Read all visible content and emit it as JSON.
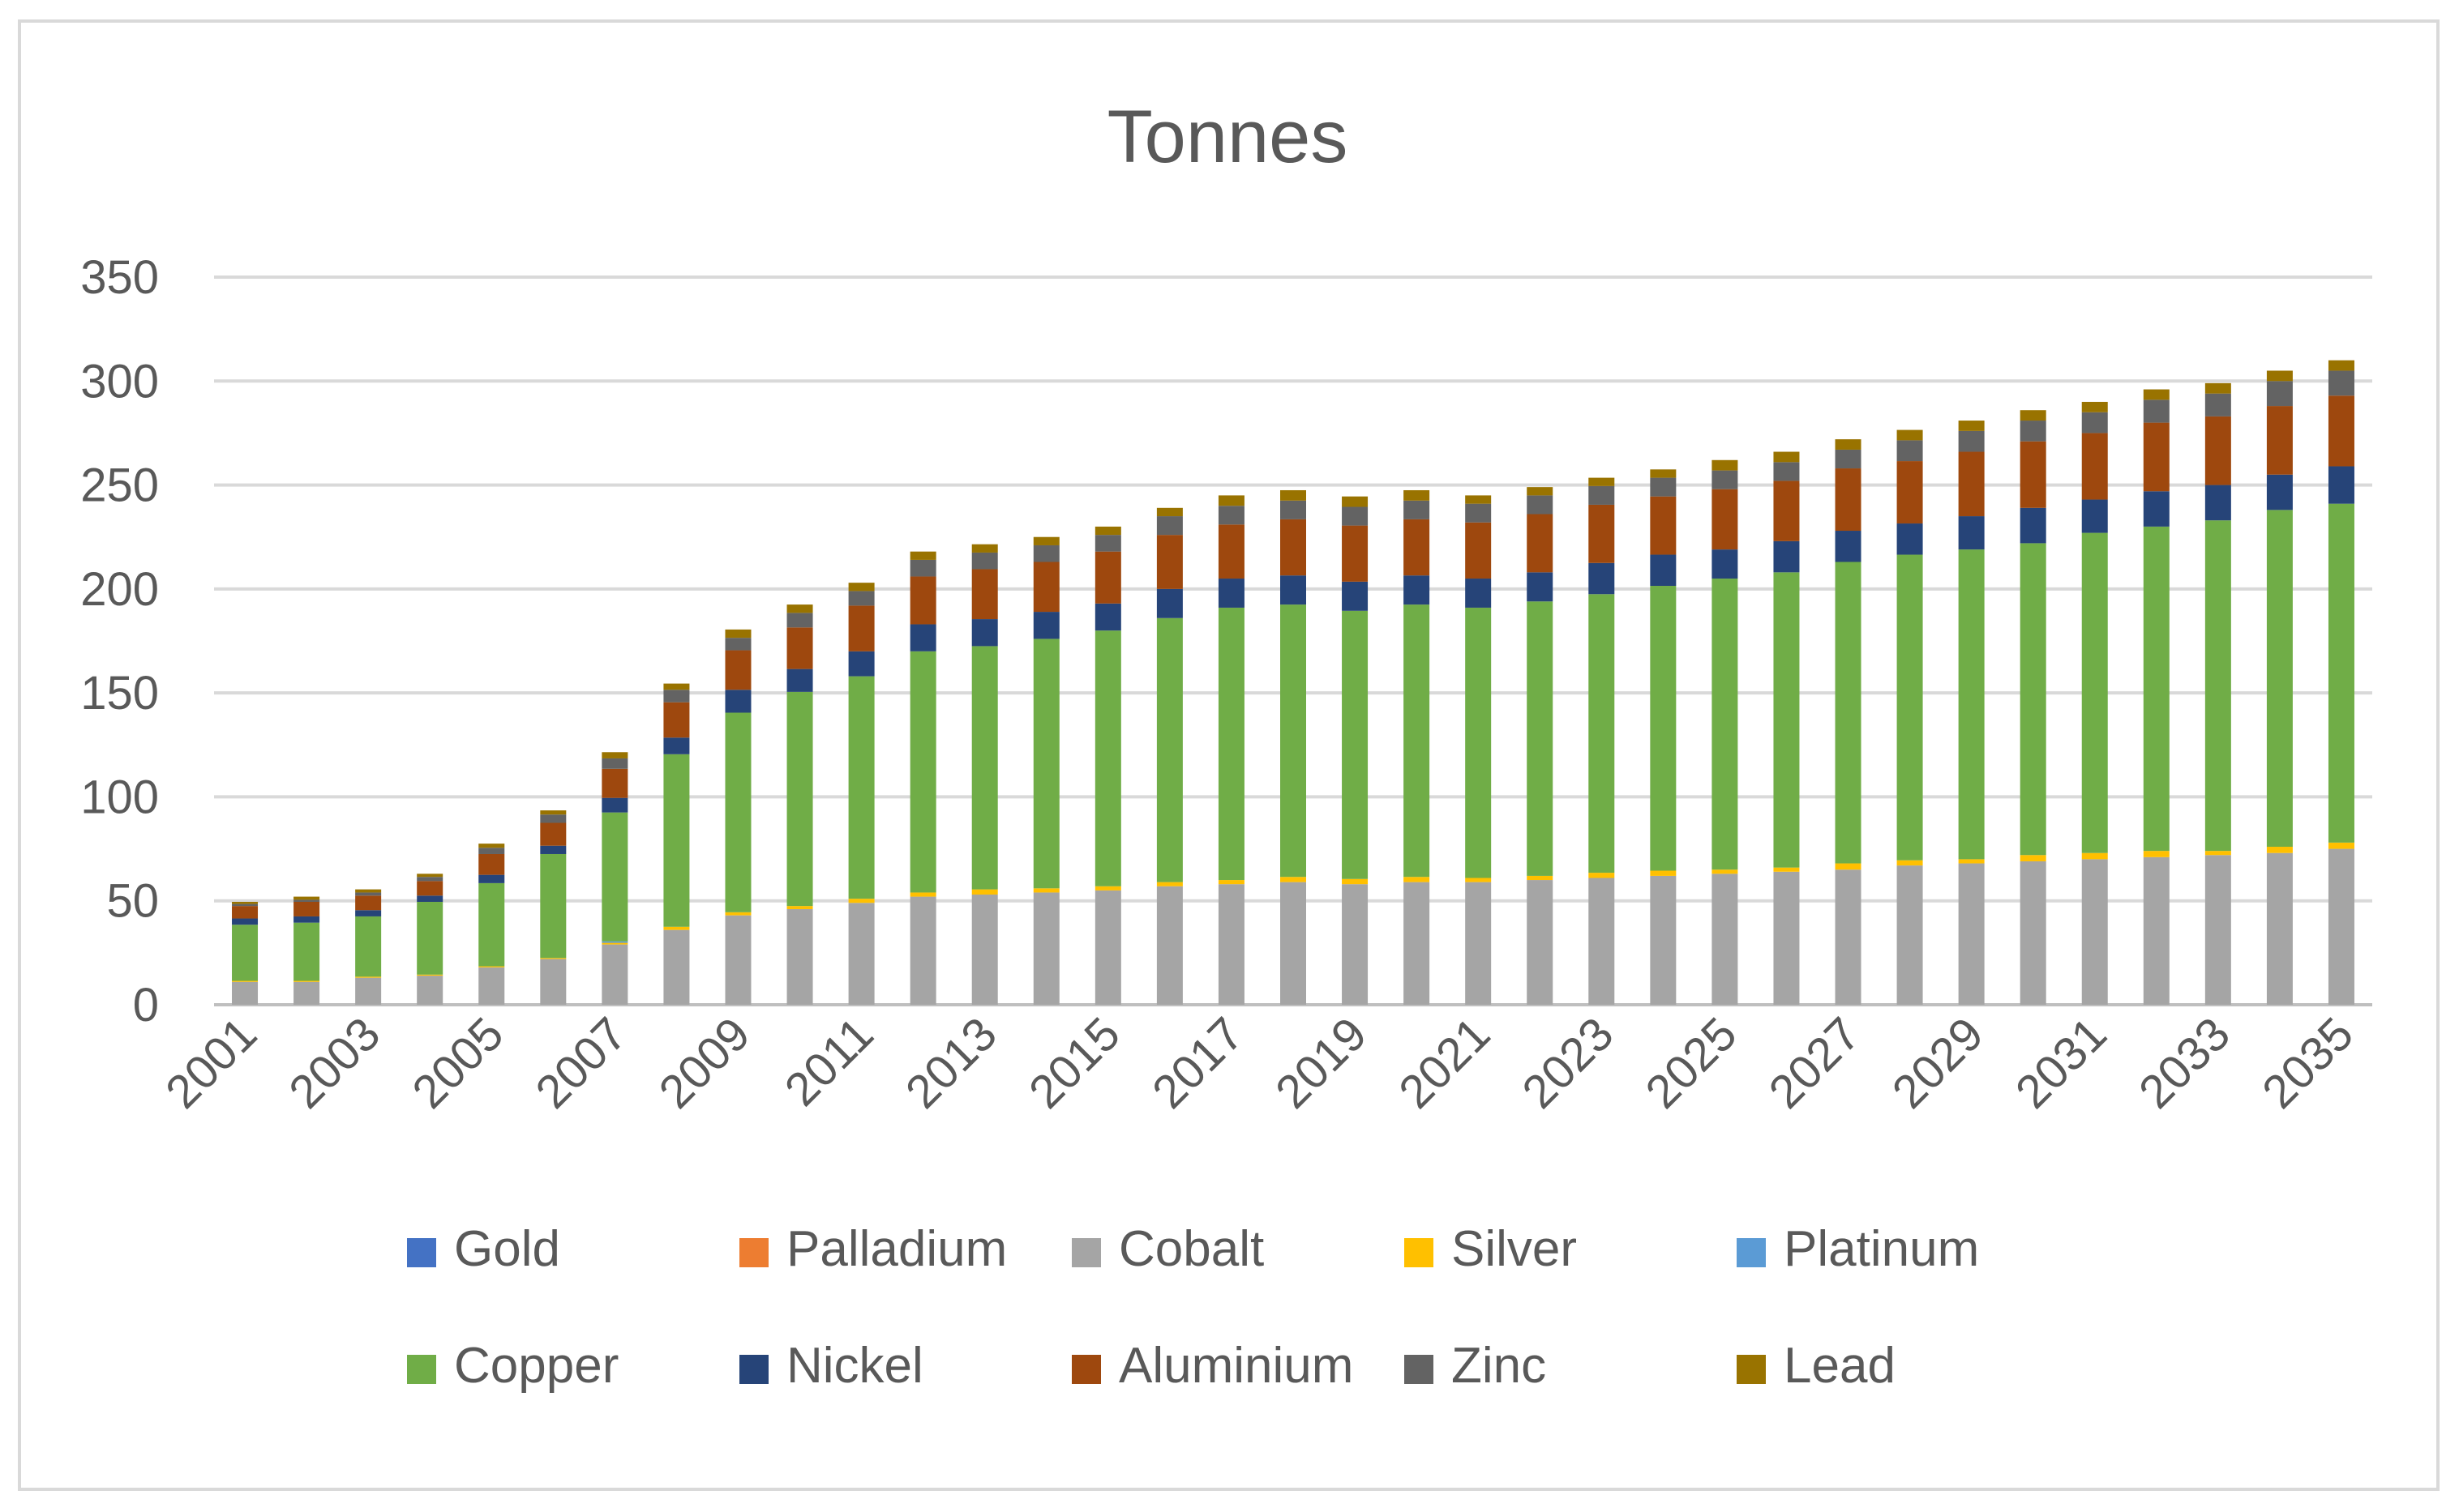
{
  "chart_data": {
    "type": "bar",
    "stacked": true,
    "title": "Tonnes",
    "xlabel": "",
    "ylabel": "",
    "ylim": [
      0,
      350
    ],
    "yticks": [
      0,
      50,
      100,
      150,
      200,
      250,
      300,
      350
    ],
    "grid": true,
    "legend_position": "bottom",
    "x_tick_labels_shown": [
      "2001",
      "2003",
      "2005",
      "2007",
      "2009",
      "2011",
      "2013",
      "2015",
      "2017",
      "2019",
      "2021",
      "2023",
      "2025",
      "2027",
      "2029",
      "2031",
      "2033",
      "2035"
    ],
    "categories": [
      "2001",
      "2002",
      "2003",
      "2004",
      "2005",
      "2006",
      "2007",
      "2008",
      "2009",
      "2010",
      "2011",
      "2012",
      "2013",
      "2014",
      "2015",
      "2016",
      "2017",
      "2018",
      "2019",
      "2020",
      "2021",
      "2022",
      "2023",
      "2024",
      "2025",
      "2026",
      "2027",
      "2028",
      "2029",
      "2030",
      "2031",
      "2032",
      "2033",
      "2034",
      "2035"
    ],
    "series": [
      {
        "name": "Gold",
        "color": "#4472c4",
        "values": [
          0,
          0,
          0,
          0,
          0,
          0,
          0,
          0,
          0,
          0,
          0,
          0,
          0,
          0,
          0,
          0,
          0,
          0,
          0,
          0,
          0,
          0,
          0,
          0,
          0,
          0,
          0,
          0,
          0,
          0,
          0,
          0,
          0,
          0,
          0
        ]
      },
      {
        "name": "Palladium",
        "color": "#ed7d31",
        "values": [
          0,
          0,
          0,
          0,
          0,
          0,
          0,
          0,
          0,
          0,
          0,
          0,
          0,
          0,
          0,
          0,
          0,
          0,
          0,
          0,
          0,
          0,
          0,
          0,
          0,
          0,
          0,
          0,
          0,
          0,
          0,
          0,
          0,
          0,
          0
        ]
      },
      {
        "name": "Cobalt",
        "color": "#a5a5a5",
        "values": [
          11,
          11,
          13,
          14,
          18,
          22,
          29,
          36,
          43,
          46,
          49,
          52,
          53,
          54,
          55,
          57,
          58,
          59,
          58,
          59,
          59,
          60,
          61,
          62,
          63,
          64,
          65,
          67,
          68,
          69,
          70,
          71,
          72,
          73,
          75
        ]
      },
      {
        "name": "Silver",
        "color": "#ffc000",
        "values": [
          0.5,
          0.5,
          0.5,
          0.5,
          0.5,
          0.5,
          0.8,
          1.5,
          1.5,
          1.5,
          2,
          2,
          2.5,
          2,
          2,
          2,
          2,
          2.5,
          2.5,
          2.5,
          2,
          2,
          2.5,
          2.5,
          2,
          2,
          3,
          2.5,
          2,
          3,
          3,
          3,
          2,
          3,
          3
        ]
      },
      {
        "name": "Platinum",
        "color": "#5b9bd5",
        "values": [
          0,
          0,
          0,
          0,
          0,
          0,
          0.7,
          0,
          0,
          0,
          0,
          0,
          0,
          0,
          0,
          0,
          0,
          0,
          0,
          0,
          0,
          0,
          0,
          0,
          0,
          0,
          0,
          0,
          0,
          0,
          0,
          0,
          0,
          0,
          0
        ]
      },
      {
        "name": "Copper",
        "color": "#70ad47",
        "values": [
          27,
          28,
          29,
          35,
          40,
          50,
          62,
          83,
          96,
          103,
          107,
          116,
          117,
          120,
          123,
          127,
          131,
          131,
          129,
          131,
          130,
          132,
          134,
          137,
          140,
          142,
          145,
          147,
          149,
          150,
          154,
          156,
          159,
          162,
          163
        ]
      },
      {
        "name": "Nickel",
        "color": "#264478",
        "values": [
          3,
          3,
          3,
          3,
          4,
          4,
          7,
          8,
          11,
          11,
          12,
          13,
          13,
          13,
          13,
          14,
          14,
          14,
          14,
          14,
          14,
          14,
          15,
          15,
          14,
          15,
          15,
          15,
          16,
          17,
          16,
          17,
          17,
          17,
          18
        ]
      },
      {
        "name": "Aluminium",
        "color": "#9e480e",
        "values": [
          6,
          7,
          7,
          7,
          10,
          11,
          14,
          17,
          19,
          20,
          22,
          23,
          24,
          24,
          25,
          26,
          26,
          27,
          27,
          27,
          27,
          28,
          28,
          28,
          29,
          29,
          30,
          30,
          31,
          32,
          32,
          33,
          33,
          33,
          34
        ]
      },
      {
        "name": "Zinc",
        "color": "#636363",
        "values": [
          1,
          1,
          1.5,
          2,
          3,
          4,
          5,
          6,
          6,
          7,
          7,
          8,
          8,
          8,
          8,
          9,
          9,
          9,
          9,
          9,
          9,
          9,
          9,
          9,
          9,
          9,
          9,
          10,
          10,
          10,
          10,
          11,
          11,
          12,
          12
        ]
      },
      {
        "name": "Lead",
        "color": "#997300",
        "values": [
          1,
          1.5,
          1.5,
          1.5,
          2,
          2,
          3,
          3,
          4,
          4,
          4,
          4,
          4,
          4,
          4,
          4,
          5,
          5,
          5,
          5,
          4,
          4,
          4,
          4,
          5,
          5,
          5,
          5,
          5,
          5,
          5,
          5,
          5,
          5,
          5
        ]
      }
    ]
  }
}
